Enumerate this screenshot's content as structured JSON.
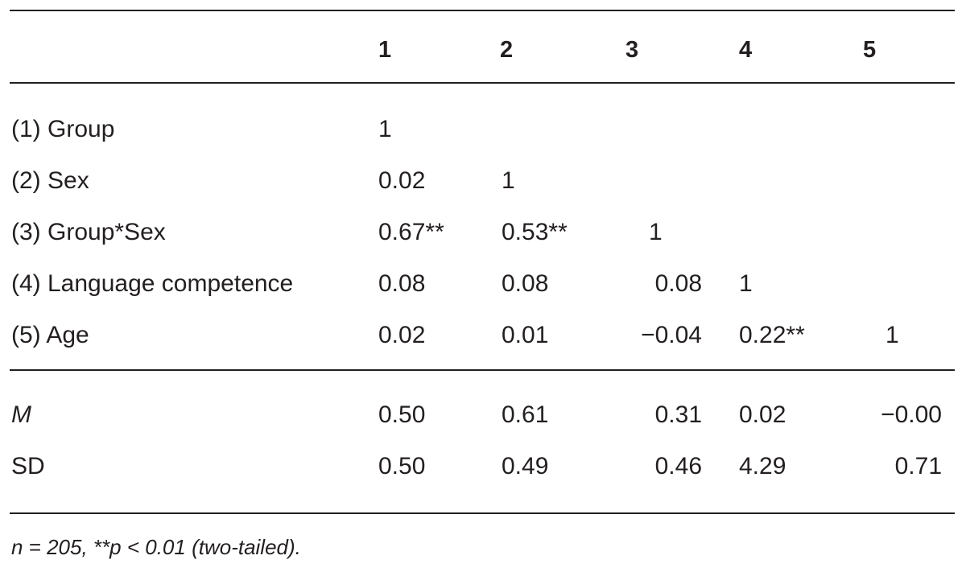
{
  "table": {
    "columns": [
      "1",
      "2",
      "3",
      "4",
      "5"
    ],
    "rows": [
      {
        "label": "(1) Group",
        "values": [
          "1",
          "",
          "",
          "",
          ""
        ]
      },
      {
        "label": "(2) Sex",
        "values": [
          "0.02",
          "1",
          "",
          "",
          ""
        ]
      },
      {
        "label": "(3) Group*Sex",
        "values": [
          "0.67**",
          "0.53**",
          "1",
          "",
          ""
        ]
      },
      {
        "label": "(4) Language competence",
        "values": [
          "0.08",
          "0.08",
          "0.08",
          "1",
          ""
        ]
      },
      {
        "label": "(5) Age",
        "values": [
          "0.02",
          "0.01",
          "−0.04",
          "0.22**",
          "1"
        ]
      }
    ],
    "summary": [
      {
        "label": "M",
        "values": [
          "0.50",
          "0.61",
          "0.31",
          "0.02",
          "−0.00"
        ]
      },
      {
        "label": "SD",
        "values": [
          "0.50",
          "0.49",
          "0.46",
          "4.29",
          "0.71"
        ]
      }
    ],
    "note": "n = 205, **p < 0.01 (two-tailed)."
  }
}
